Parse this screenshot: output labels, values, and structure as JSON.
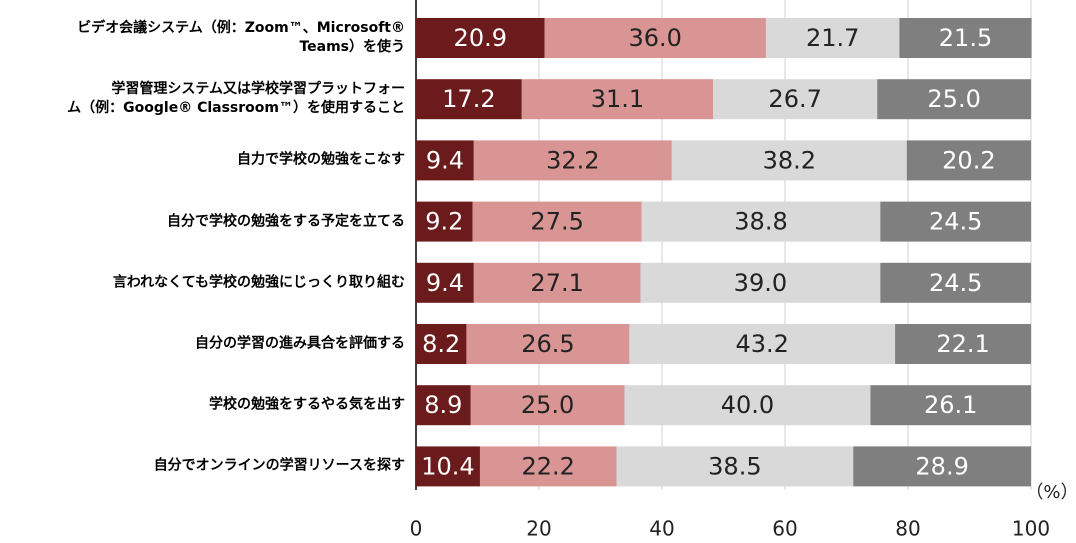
{
  "chart_data": {
    "type": "stacked-barh",
    "categories": [
      "ビデオ会議システム（例：Zoom™、Microsoft®\nTeams）を使う",
      "学習管理システム又は学校学習プラットフォー\nム（例：Google® Classroom™）を使用すること",
      "自力で学校の勉強をこなす",
      "自分で学校の勉強をする予定を立てる",
      "言われなくても学校の勉強にじっくり取り組む",
      "自分の学習の進み具合を評価する",
      "学校の勉強をするやる気を出す",
      "自分でオンラインの学習リソースを探す"
    ],
    "series": [
      {
        "color": "#6b1b1b",
        "text_color": "#ffffff",
        "values": [
          20.9,
          17.2,
          9.4,
          9.2,
          9.4,
          8.2,
          8.9,
          10.4
        ],
        "value_labels": [
          "20.9",
          "17.2",
          "9.4",
          "9.2",
          "9.4",
          "8.2",
          "8.9",
          "10.4"
        ]
      },
      {
        "color": "#d99594",
        "text_color": "#222222",
        "values": [
          36.0,
          31.1,
          32.2,
          27.5,
          27.1,
          26.5,
          25.0,
          22.2
        ],
        "value_labels": [
          "36.0",
          "31.1",
          "32.2",
          "27.5",
          "27.1",
          "26.5",
          "25.0",
          "22.2"
        ]
      },
      {
        "color": "#d9d9d9",
        "text_color": "#222222",
        "values": [
          21.7,
          26.7,
          38.2,
          38.8,
          39.0,
          43.2,
          40.0,
          38.5
        ],
        "value_labels": [
          "21.7",
          "26.7",
          "38.2",
          "38.8",
          "39.0",
          "43.2",
          "40.0",
          "38.5"
        ]
      },
      {
        "color": "#7f7f7f",
        "text_color": "#ffffff",
        "values": [
          21.5,
          25.0,
          20.2,
          24.5,
          24.5,
          22.1,
          26.1,
          28.9
        ],
        "value_labels": [
          "21.5",
          "25.0",
          "20.2",
          "24.5",
          "24.5",
          "22.1",
          "26.1",
          "28.9"
        ]
      }
    ],
    "x_label": "（%）",
    "xlim": [
      0,
      100
    ],
    "xticks": [
      0,
      20,
      40,
      60,
      80,
      100
    ],
    "grid": true
  }
}
